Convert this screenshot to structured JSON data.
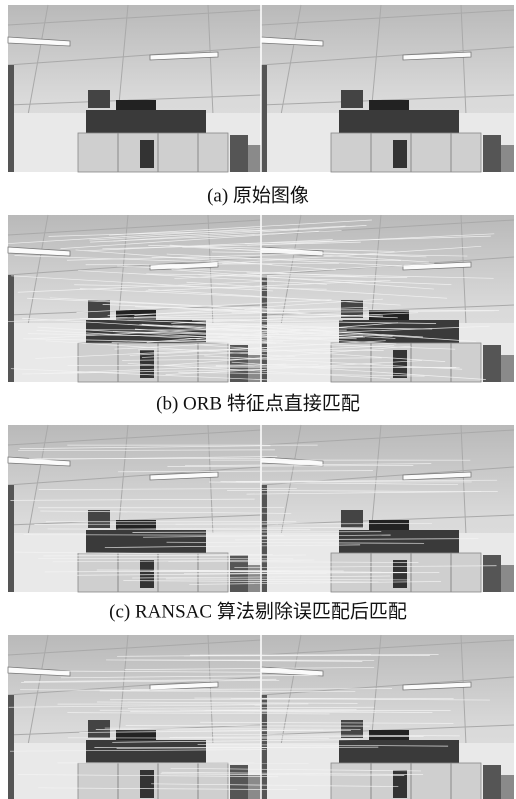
{
  "figure": {
    "panels": [
      {
        "caption": "(a)  原始图像"
      },
      {
        "caption": "(b) ORB 特征点直接匹配"
      },
      {
        "caption": "(c) RANSAC 算法剔除误匹配后匹配"
      }
    ]
  }
}
